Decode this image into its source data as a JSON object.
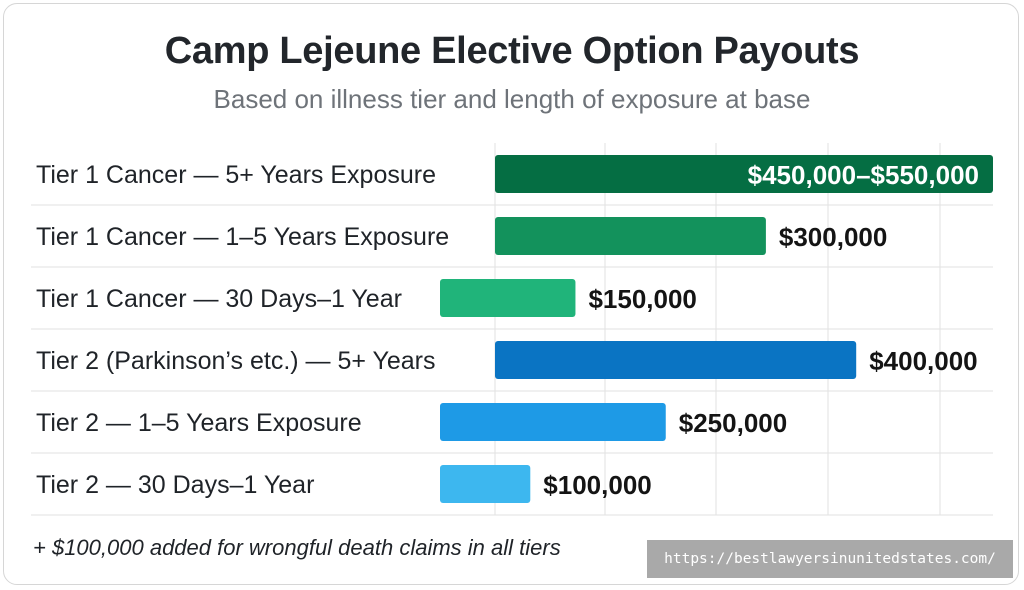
{
  "title": "Camp Lejeune Elective Option Payouts",
  "subtitle": "Based on illness tier and length of exposure at base",
  "footnote": "+ $100,000 added for wrongful death claims in all tiers",
  "watermark": "https://bestlawyersinunitedstates.com/",
  "colors": {
    "grid": "#e2e2e2",
    "label": "#1f2328",
    "value": "#141414",
    "value_inside": "#ffffff"
  },
  "chart_data": {
    "type": "bar",
    "orientation": "horizontal",
    "title": "Camp Lejeune Elective Option Payouts",
    "subtitle": "Based on illness tier and length of exposure at base",
    "grid": true,
    "bars": [
      {
        "category": "Tier 1 Cancer — 5+ Years Exposure",
        "min": 450000,
        "max": 550000,
        "label": "$450,000–$550,000",
        "color": "#056e43",
        "label_inside": true
      },
      {
        "category": "Tier 1 Cancer — 1–5 Years Exposure",
        "min": 300000,
        "max": 300000,
        "label": "$300,000",
        "color": "#13925c",
        "label_inside": false
      },
      {
        "category": "Tier 1 Cancer — 30 Days–1 Year",
        "min": 150000,
        "max": 150000,
        "label": "$150,000",
        "color": "#20b47a",
        "label_inside": false
      },
      {
        "category": "Tier 2 (Parkinson’s etc.) — 5+ Years",
        "min": 400000,
        "max": 400000,
        "label": "$400,000",
        "color": "#0a74c3",
        "label_inside": false
      },
      {
        "category": "Tier 2 — 1–5 Years Exposure",
        "min": 250000,
        "max": 250000,
        "label": "$250,000",
        "color": "#1e9ae6",
        "label_inside": false
      },
      {
        "category": "Tier 2 — 30 Days–1 Year",
        "min": 100000,
        "max": 100000,
        "label": "$100,000",
        "color": "#3db7ef",
        "label_inside": false
      }
    ]
  }
}
